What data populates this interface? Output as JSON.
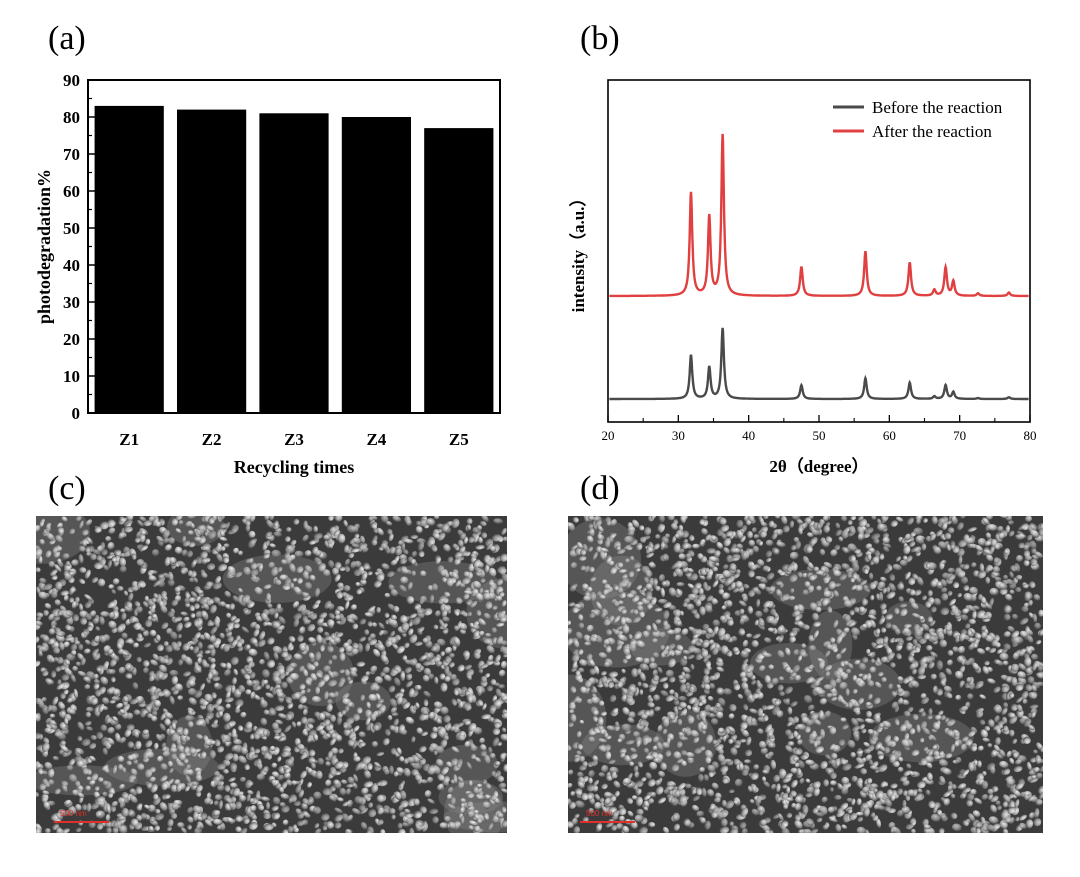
{
  "panels": {
    "a": {
      "letter": "(a)"
    },
    "b": {
      "letter": "(b)"
    },
    "c": {
      "letter": "(c)",
      "scale_bar": "500 nm"
    },
    "d": {
      "letter": "(d)",
      "scale_bar": "500 nm"
    }
  },
  "chart_data": [
    {
      "type": "bar",
      "title": "",
      "xlabel": "Recycling times",
      "ylabel": "photodegradation%",
      "categories": [
        "Z1",
        "Z2",
        "Z3",
        "Z4",
        "Z5"
      ],
      "values": [
        83,
        82,
        81,
        80,
        77
      ],
      "ylim": [
        0,
        90
      ],
      "yticks": [
        0,
        10,
        20,
        30,
        40,
        50,
        60,
        70,
        80,
        90
      ],
      "bar_color": "#000000",
      "grid": false
    },
    {
      "type": "line",
      "title": "",
      "xlabel": "2θ（degree）",
      "ylabel": "intensity（a.u.）",
      "xlim": [
        20,
        80
      ],
      "xticks": [
        20,
        30,
        40,
        50,
        60,
        70,
        80
      ],
      "legend_position": "top-right",
      "grid": false,
      "peaks_2theta": [
        31.8,
        34.4,
        36.3,
        47.5,
        56.6,
        62.9,
        66.4,
        68.0,
        69.1,
        72.6,
        77.0
      ],
      "series": [
        {
          "name": "Before the reaction",
          "color": "#4a4a4a",
          "relative_intensity": [
            0.51,
            0.37,
            0.82,
            0.16,
            0.24,
            0.19,
            0.03,
            0.16,
            0.08,
            0.01,
            0.02
          ]
        },
        {
          "name": "After the reaction",
          "color": "#e04040",
          "relative_intensity": [
            1.2,
            0.92,
            1.87,
            0.34,
            0.52,
            0.39,
            0.07,
            0.33,
            0.17,
            0.03,
            0.04
          ]
        }
      ]
    }
  ]
}
